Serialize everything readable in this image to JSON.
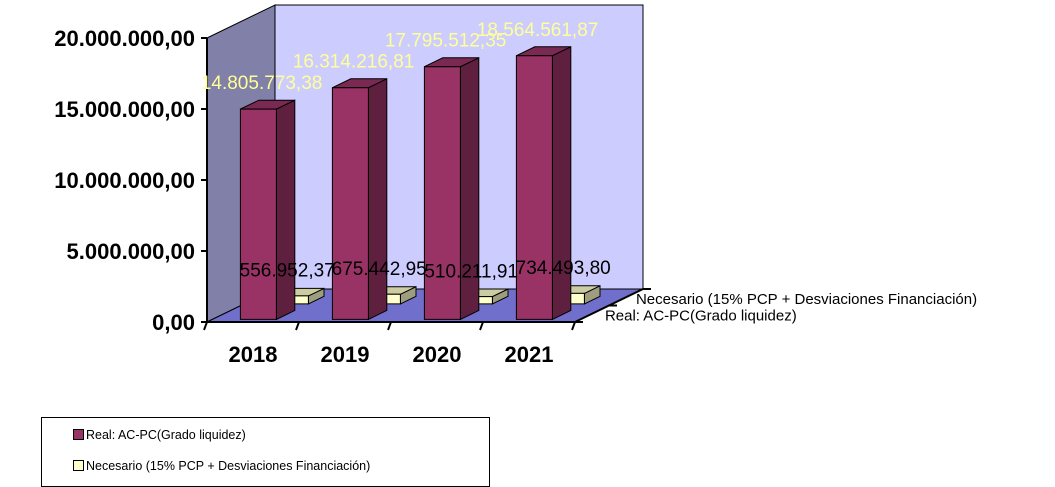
{
  "chart_data": {
    "type": "bar",
    "style": "3d-clustered-depth",
    "categories": [
      "2018",
      "2019",
      "2020",
      "2021"
    ],
    "series": [
      {
        "name": "Real: AC-PC(Grado liquidez)",
        "values": [
          14805773.38,
          16314216.81,
          17795512.35,
          18564561.87
        ],
        "labels": [
          "14.805.773,38",
          "16.314.216,81",
          "17.795.512,35",
          "18.564.561,87"
        ],
        "color": "#993366"
      },
      {
        "name": "Necesario (15% PCP + Desviaciones Financiación)",
        "values": [
          556952.37,
          675442.95,
          510211.91,
          734493.8
        ],
        "labels": [
          "556.952,37",
          "675.442,95",
          "510.211,91",
          "734.493,80"
        ],
        "color": "#ffffcc"
      }
    ],
    "y_ticks": [
      "0,00",
      "5.000.000,00",
      "10.000.000,00",
      "15.000.000,00",
      "20.000.000,00"
    ],
    "ylim": [
      0,
      20000000
    ],
    "legend_position": "bottom-left",
    "colors": {
      "back_wall": "#ccccff",
      "side_wall": "#8080a8",
      "floor": "#7070cc"
    }
  },
  "legend": {
    "items": [
      "Real: AC-PC(Grado liquidez)",
      "Necesario (15% PCP + Desviaciones Financiación)"
    ]
  }
}
